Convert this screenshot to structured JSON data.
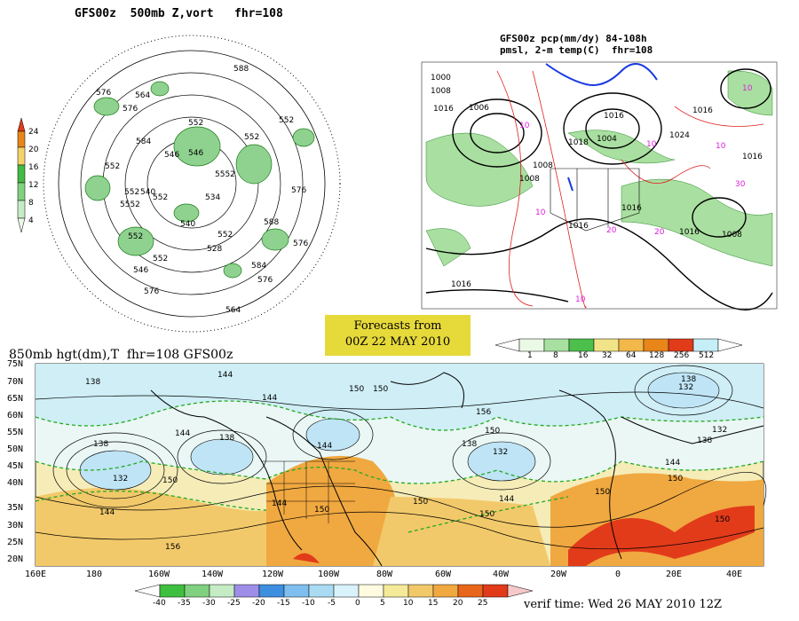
{
  "top_left": {
    "title": "GFS00z  500mb Z,vort   fhr=108",
    "colorbar_ticks": [
      "24",
      "20",
      "16",
      "12",
      "8",
      "4"
    ],
    "contour_labels": [
      "588",
      "576",
      "564",
      "584",
      "552",
      "546",
      "5552",
      "552",
      "552",
      "540",
      "552",
      "534",
      "5552",
      "552",
      "540",
      "588",
      "528",
      "552",
      "546",
      "552",
      "564",
      "552",
      "584",
      "576",
      "576",
      "552",
      "576",
      "576",
      "546",
      "576"
    ]
  },
  "top_right": {
    "title_line1": "GFS00z pcp(mm/dy) 84-108h",
    "title_line2": "pmsl, 2-m temp(C)  fhr=108",
    "labels": [
      "1000",
      "1008",
      "1016",
      "1006",
      "1018",
      "1004",
      "1016",
      "1024",
      "1016",
      "1008",
      "1016",
      "1016",
      "1016",
      "1008",
      "1016",
      "1008",
      "1016",
      "10",
      "10",
      "10",
      "10",
      "10",
      "10",
      "30",
      "20",
      "20"
    ],
    "colorbar_ticks": [
      "1",
      "8",
      "16",
      "32",
      "64",
      "128",
      "256",
      "512"
    ]
  },
  "banner": {
    "line1": "Forecasts from",
    "line2": "00Z 22 MAY 2010"
  },
  "bottom": {
    "title": "850mb hgt(dm),T  fhr=108 GFS00z",
    "lat_labels": [
      "75N",
      "70N",
      "65N",
      "60N",
      "55N",
      "50N",
      "45N",
      "40N",
      "35N",
      "30N",
      "25N",
      "20N"
    ],
    "lon_labels": [
      "160E",
      "180",
      "160W",
      "140W",
      "120W",
      "100W",
      "80W",
      "60W",
      "40W",
      "20W",
      "0",
      "20E",
      "40E"
    ],
    "contour_labels": [
      "138",
      "144",
      "138",
      "132",
      "150",
      "144",
      "156",
      "144",
      "138",
      "144",
      "150",
      "150",
      "144",
      "150",
      "156",
      "150",
      "138",
      "132",
      "144",
      "150",
      "138",
      "132",
      "144",
      "150",
      "138",
      "144",
      "132",
      "150",
      "150",
      "150"
    ],
    "colorbar_ticks": [
      "-40",
      "-35",
      "-30",
      "-25",
      "-20",
      "-15",
      "-10",
      "-5",
      "0",
      "5",
      "10",
      "15",
      "20",
      "25"
    ]
  },
  "verif_time": "verif time: Wed 26 MAY 2010 12Z",
  "colors": {
    "banner": "#e6d93a",
    "land_warm": "#f2b84a",
    "ocean_cool": "#cfeef6",
    "green": "#44bb44",
    "red": "#e23b1a"
  }
}
